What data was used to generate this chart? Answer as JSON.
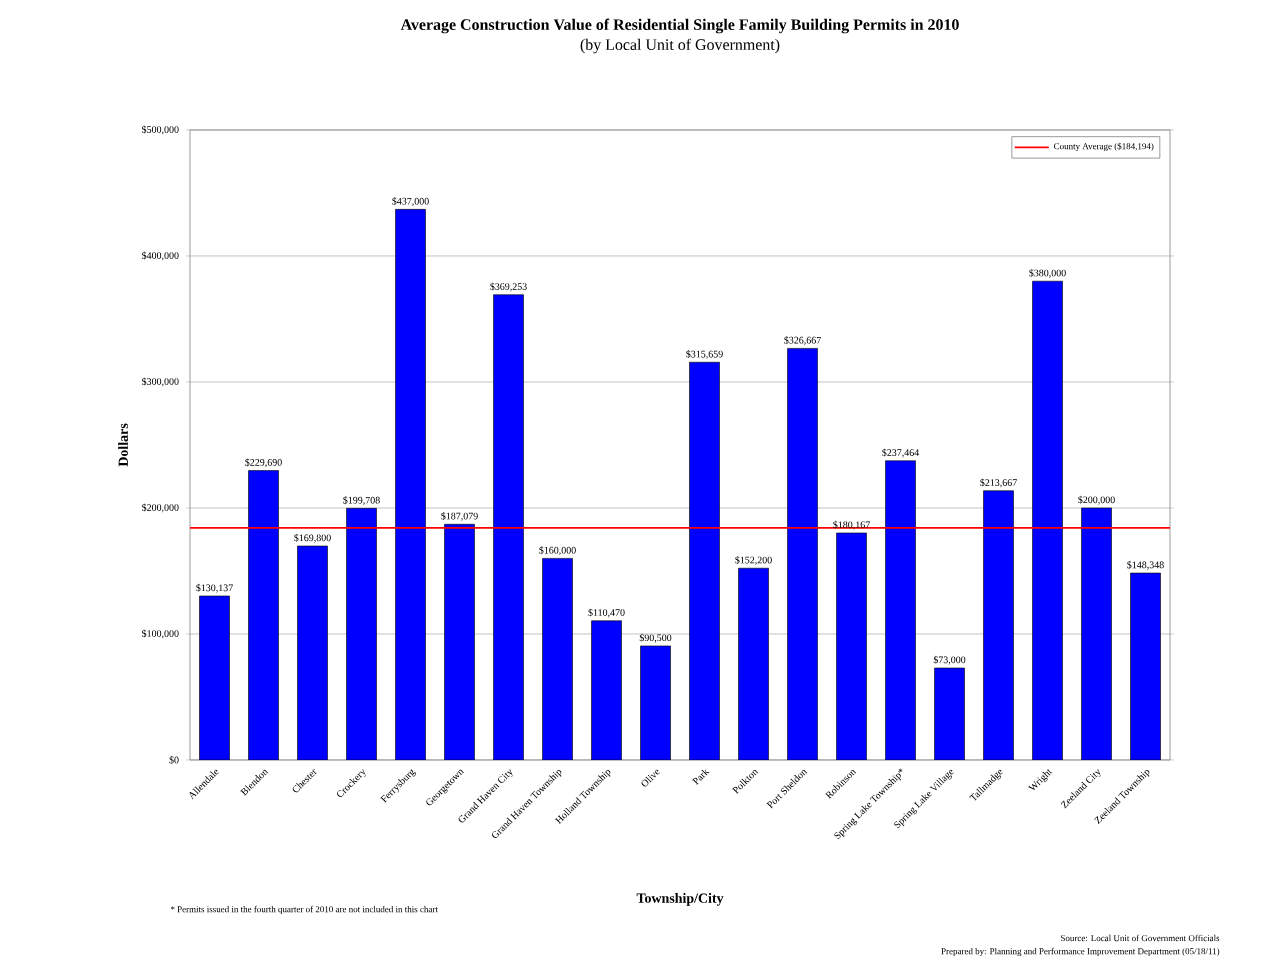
{
  "chart_data": {
    "type": "bar",
    "title": "Average Construction Value of Residential Single Family Building Permits in 2010",
    "subtitle": "(by Local Unit of Government)",
    "xlabel": "Township/City",
    "ylabel": "Dollars",
    "categories": [
      "Allendale",
      "Blendon",
      "Chester",
      "Crockery",
      "Ferrysburg",
      "Georgetown",
      "Grand Haven City",
      "Grand Haven Township",
      "Holland Township",
      "Olive",
      "Park",
      "Polkton",
      "Port Sheldon",
      "Robinson",
      "Spring Lake Township*",
      "Spring Lake Village",
      "Tallmadge",
      "Wright",
      "Zeeland City",
      "Zeeland Township"
    ],
    "values": [
      130137,
      229690,
      169800,
      199708,
      437000,
      187079,
      369253,
      160000,
      110470,
      90500,
      315659,
      152200,
      326667,
      180167,
      237464,
      73000,
      213667,
      380000,
      200000,
      148348
    ],
    "value_labels": [
      "$130,137",
      "$229,690",
      "$169,800",
      "$199,708",
      "$437,000",
      "$187,079",
      "$369,253",
      "$160,000",
      "$110,470",
      "$90,500",
      "$315,659",
      "$152,200",
      "$326,667",
      "$180,167",
      "$237,464",
      "$73,000",
      "$213,667",
      "$380,000",
      "$200,000",
      "$148,348"
    ],
    "color": "#0000ff",
    "ylim": [
      0,
      500000
    ],
    "yticks": [
      {
        "value": 0,
        "label": "$0"
      },
      {
        "value": 100000,
        "label": "$100,000"
      },
      {
        "value": 200000,
        "label": "$200,000"
      },
      {
        "value": 300000,
        "label": "$300,000"
      },
      {
        "value": 400000,
        "label": "$400,000"
      },
      {
        "value": 500000,
        "label": "$500,000"
      }
    ],
    "grid": "y",
    "legend": "top right",
    "ref_lines": [
      {
        "axis": "y",
        "value": 184194,
        "label": "County Average ($184,194)",
        "color": "#ff0000"
      }
    ],
    "annotations": [
      "* Permits issued in the fourth quarter of 2010 are not included in this chart",
      "Source: Local Unit of Government Officials",
      "Prepared by: Planning and Performance Improvement Department (05/18/11)"
    ]
  }
}
